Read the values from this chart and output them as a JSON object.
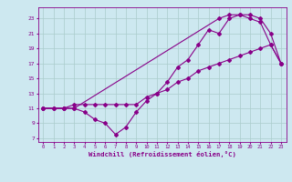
{
  "xlabel": "Windchill (Refroidissement éolien,°C)",
  "background_color": "#cde8f0",
  "line_color": "#880088",
  "grid_color": "#aacccc",
  "xlim": [
    -0.5,
    23.5
  ],
  "ylim": [
    6.5,
    24.5
  ],
  "xticks": [
    0,
    1,
    2,
    3,
    4,
    5,
    6,
    7,
    8,
    9,
    10,
    11,
    12,
    13,
    14,
    15,
    16,
    17,
    18,
    19,
    20,
    21,
    22,
    23
  ],
  "yticks": [
    7,
    9,
    11,
    13,
    15,
    17,
    19,
    21,
    23
  ],
  "line1_x": [
    0,
    1,
    2,
    3,
    4,
    5,
    6,
    7,
    8,
    9,
    10,
    11,
    12,
    13,
    14,
    15,
    16,
    17,
    18,
    19,
    20,
    21,
    22,
    23
  ],
  "line1_y": [
    11,
    11,
    11,
    11,
    10.5,
    9.5,
    9,
    7.5,
    8.5,
    10.5,
    12,
    13,
    14.5,
    16.5,
    17.5,
    19.5,
    21.5,
    21,
    23,
    23.5,
    23.5,
    23,
    21,
    17
  ],
  "line2_x": [
    0,
    1,
    2,
    3,
    4,
    5,
    6,
    7,
    8,
    9,
    10,
    11,
    12,
    13,
    14,
    15,
    16,
    17,
    18,
    19,
    20,
    21,
    22,
    23
  ],
  "line2_y": [
    11,
    11,
    11,
    11.5,
    11.5,
    11.5,
    11.5,
    11.5,
    11.5,
    11.5,
    12.5,
    13,
    13.5,
    14.5,
    15,
    16,
    16.5,
    17,
    17.5,
    18,
    18.5,
    19,
    19.5,
    17
  ],
  "line3_x": [
    0,
    2,
    3,
    17,
    18,
    19,
    20,
    21,
    22,
    23
  ],
  "line3_y": [
    11,
    11,
    11,
    23,
    23.5,
    23.5,
    23,
    22.5,
    19.5,
    17
  ]
}
